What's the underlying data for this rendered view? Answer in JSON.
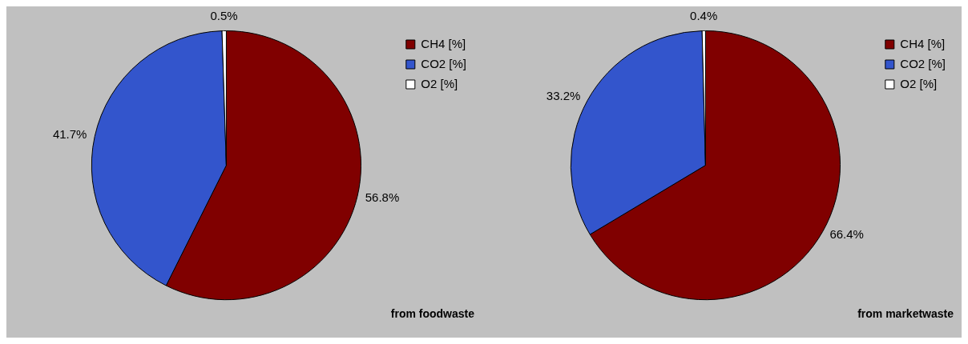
{
  "chart_data": [
    {
      "type": "pie",
      "title": "from foodwaste",
      "categories": [
        "CH4 [%]",
        "CO2 [%]",
        "O2 [%]"
      ],
      "values": [
        56.8,
        41.7,
        0.5
      ],
      "colors": [
        "#800000",
        "#3355cc",
        "#ffffff"
      ],
      "value_labels": [
        "56.8%",
        "41.7%",
        "0.5%"
      ],
      "legend": "top right"
    },
    {
      "type": "pie",
      "title": "from marketwaste",
      "categories": [
        "CH4 [%]",
        "CO2 [%]",
        "O2 [%]"
      ],
      "values": [
        66.4,
        33.2,
        0.4
      ],
      "colors": [
        "#800000",
        "#3355cc",
        "#ffffff"
      ],
      "value_labels": [
        "66.4%",
        "33.2%",
        "0.4%"
      ],
      "legend": "top right"
    }
  ]
}
